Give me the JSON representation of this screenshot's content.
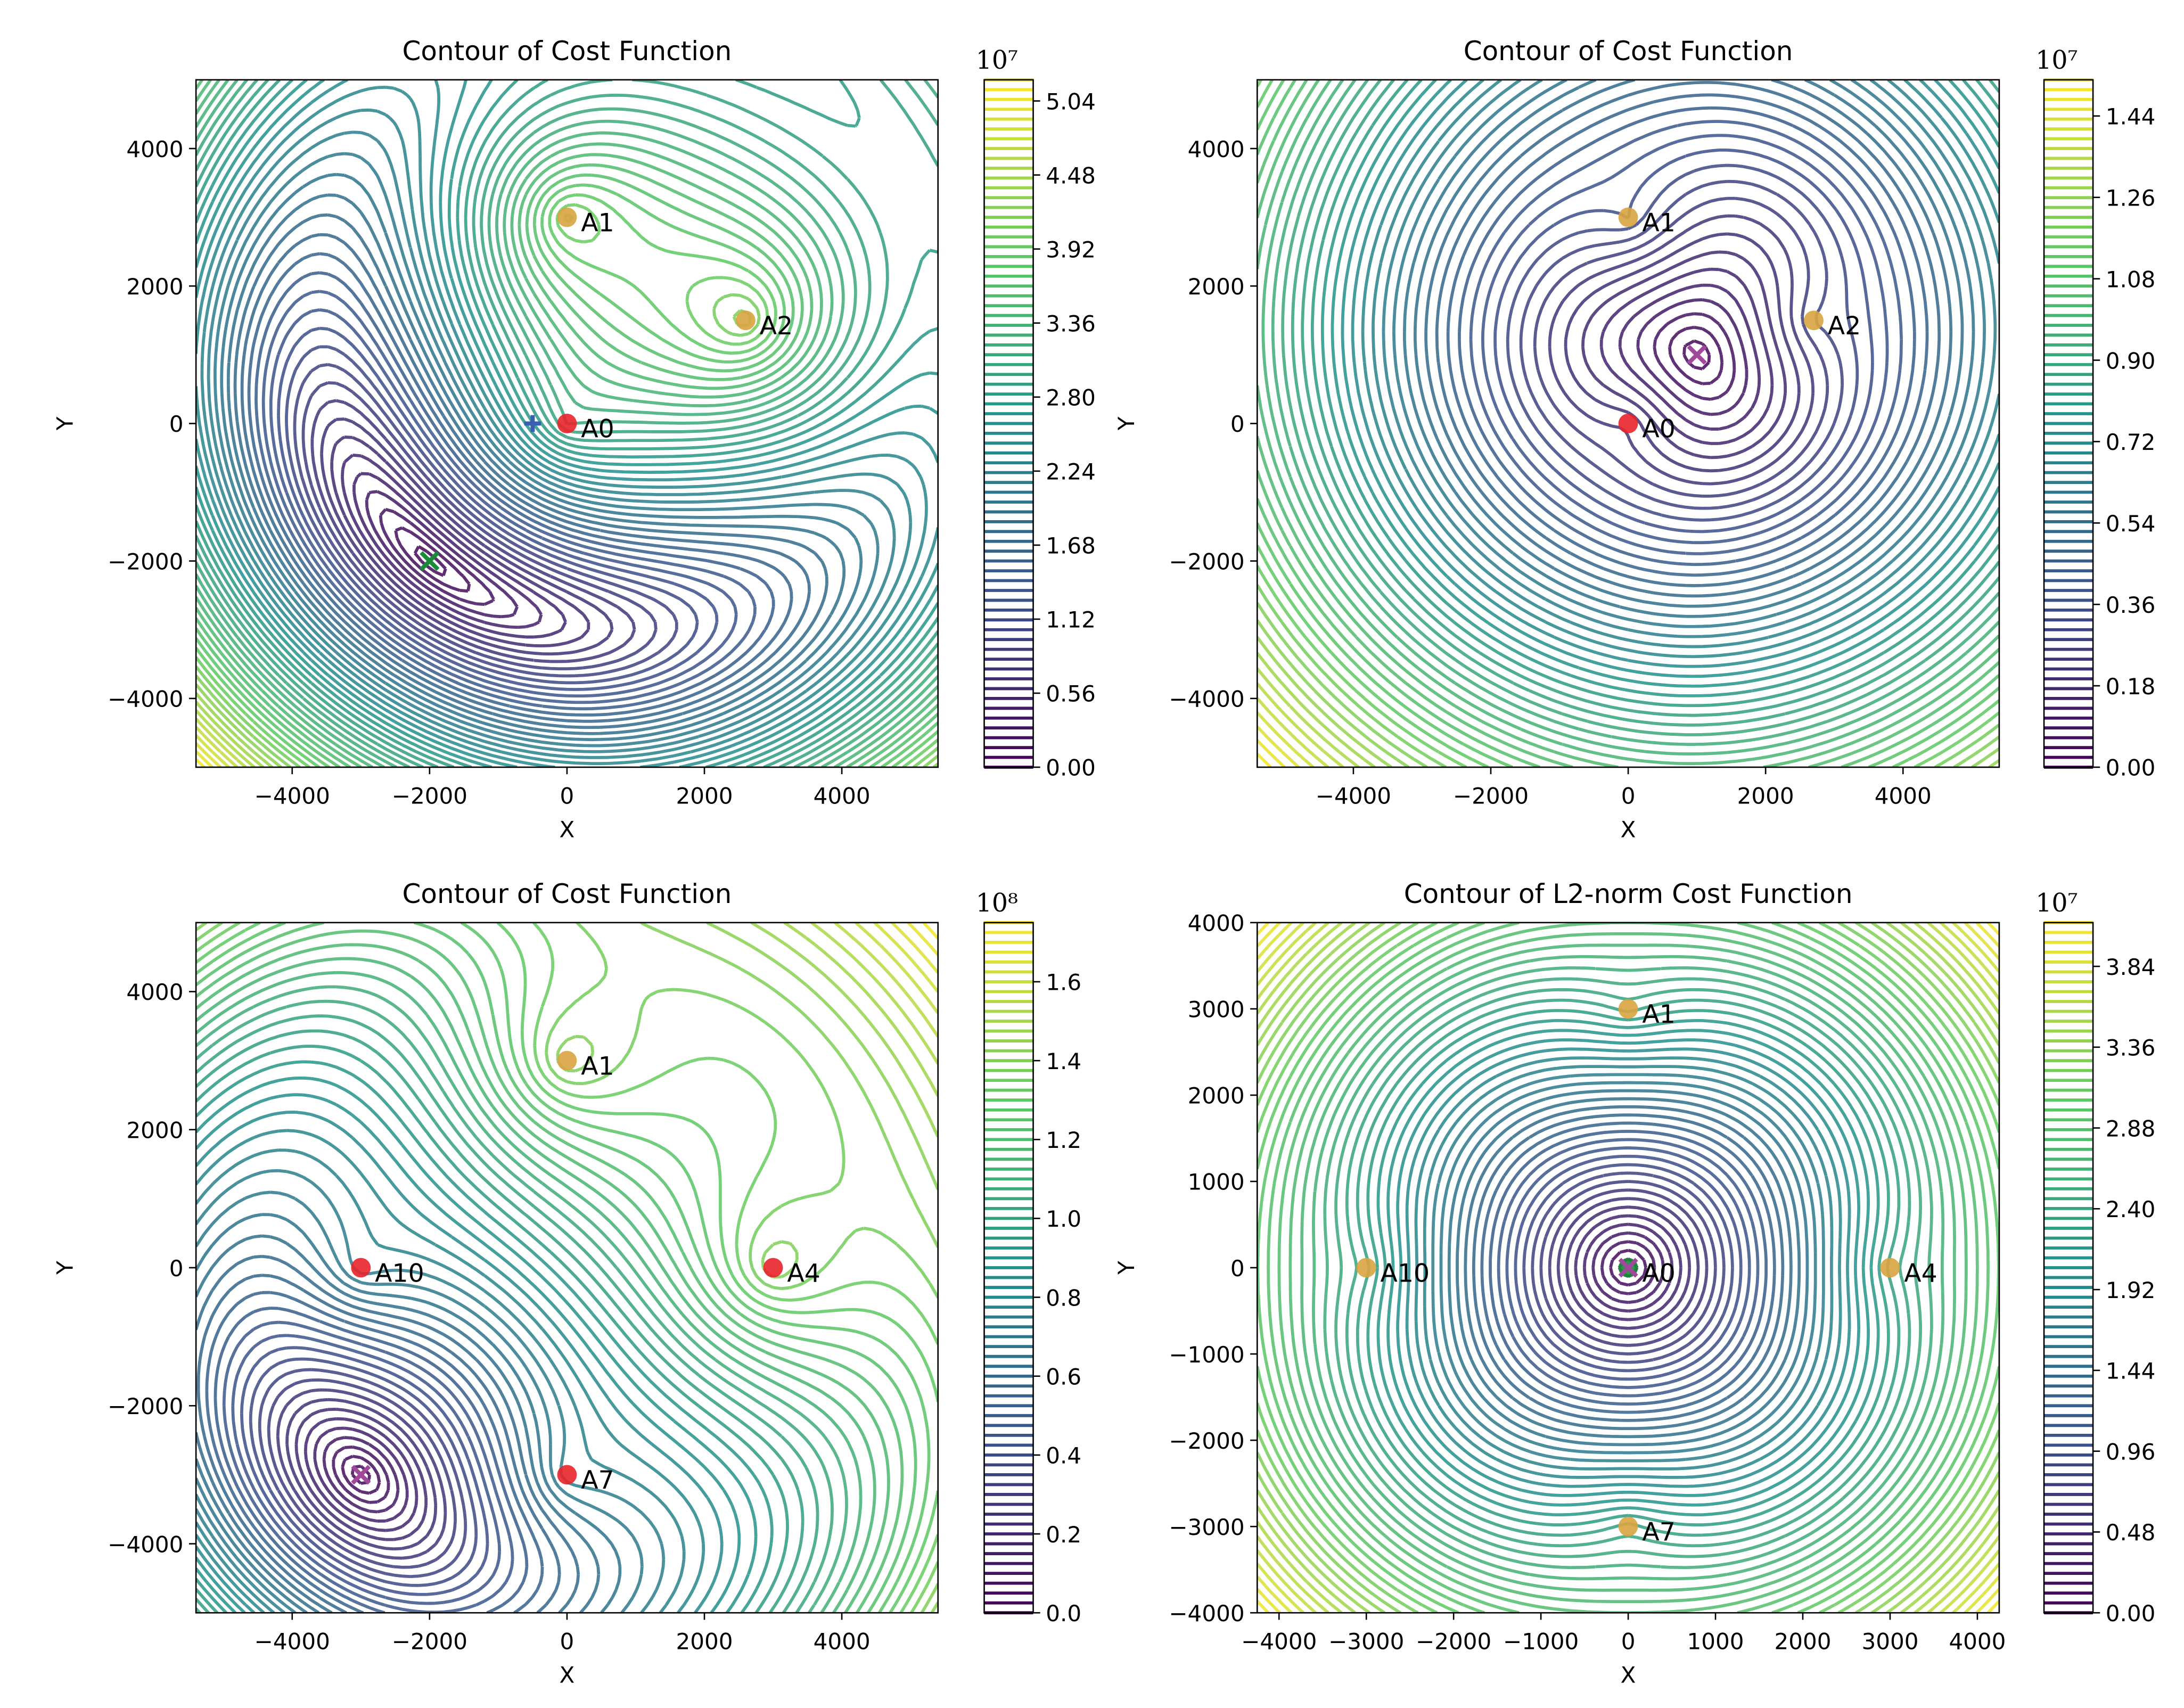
{
  "chart_data": [
    {
      "type": "contour",
      "title": "Contour of Cost Function",
      "xlabel": "X",
      "ylabel": "Y",
      "xlim": [
        -5400,
        5400
      ],
      "ylim": [
        -5000,
        5000
      ],
      "xticks": [
        {
          "value": -4000,
          "label": "−4000"
        },
        {
          "value": -2000,
          "label": "−2000"
        },
        0,
        2000,
        4000
      ],
      "yticks": [
        {
          "value": -4000,
          "label": "−4000"
        },
        {
          "value": -2000,
          "label": "−2000"
        },
        0,
        2000,
        4000
      ],
      "colorbar_offset": "10⁷",
      "clim": [
        0,
        5.2
      ],
      "cticks": [
        {
          "value": 0,
          "label": "0.00"
        },
        0.56,
        1.12,
        1.68,
        2.24,
        {
          "value": 2.8,
          "label": "2.80"
        },
        3.36,
        3.92,
        4.48,
        5.04
      ],
      "colormap": [
        "#440154",
        "#3b528b",
        "#21918c",
        "#5ec962",
        "#fde725"
      ],
      "anchors": [
        {
          "label": "A0",
          "x": 0,
          "y": 0,
          "color": "#e8242a"
        },
        {
          "label": "A1",
          "x": 0,
          "y": 3000,
          "color": "#d9a441"
        },
        {
          "label": "A2",
          "x": 2600,
          "y": 1500,
          "color": "#d9a441"
        }
      ],
      "markers": [
        {
          "x": -500,
          "y": 0,
          "symbol": "plus",
          "color": "#3a5fb0"
        },
        {
          "x": -2000,
          "y": -2000,
          "symbol": "x",
          "color": "#1a8a3a"
        }
      ]
    },
    {
      "type": "contour",
      "title": "Contour of Cost Function",
      "xlabel": "X",
      "ylabel": "Y",
      "xlim": [
        -5400,
        5400
      ],
      "ylim": [
        -5000,
        5000
      ],
      "xticks": [
        {
          "value": -4000,
          "label": "−4000"
        },
        {
          "value": -2000,
          "label": "−2000"
        },
        0,
        2000,
        4000
      ],
      "yticks": [
        {
          "value": -4000,
          "label": "−4000"
        },
        {
          "value": -2000,
          "label": "−2000"
        },
        0,
        2000,
        4000
      ],
      "colorbar_offset": "10⁷",
      "clim": [
        0,
        1.52
      ],
      "cticks": [
        {
          "value": 0,
          "label": "0.00"
        },
        0.18,
        0.36,
        0.54,
        0.72,
        {
          "value": 0.9,
          "label": "0.90"
        },
        1.08,
        1.26,
        1.44
      ],
      "colormap": [
        "#440154",
        "#3b528b",
        "#21918c",
        "#5ec962",
        "#fde725"
      ],
      "anchors": [
        {
          "label": "A0",
          "x": 0,
          "y": 0,
          "color": "#e8242a"
        },
        {
          "label": "A1",
          "x": 0,
          "y": 3000,
          "color": "#d9a441"
        },
        {
          "label": "A2",
          "x": 2700,
          "y": 1500,
          "color": "#d9a441"
        }
      ],
      "markers": [
        {
          "x": 1000,
          "y": 1000,
          "symbol": "x",
          "color": "#a0489a"
        }
      ]
    },
    {
      "type": "contour",
      "title": "Contour of Cost Function",
      "xlabel": "X",
      "ylabel": "Y",
      "xlim": [
        -5400,
        5400
      ],
      "ylim": [
        -5000,
        5000
      ],
      "xticks": [
        {
          "value": -4000,
          "label": "−4000"
        },
        {
          "value": -2000,
          "label": "−2000"
        },
        0,
        2000,
        4000
      ],
      "yticks": [
        {
          "value": -4000,
          "label": "−4000"
        },
        {
          "value": -2000,
          "label": "−2000"
        },
        0,
        2000,
        4000
      ],
      "colorbar_offset": "10⁸",
      "clim": [
        0,
        1.75
      ],
      "cticks": [
        {
          "value": 0,
          "label": "0.0"
        },
        0.2,
        0.4,
        0.6,
        0.8,
        {
          "value": 1,
          "label": "1.0"
        },
        1.2,
        1.4,
        1.6
      ],
      "colormap": [
        "#440154",
        "#3b528b",
        "#21918c",
        "#5ec962",
        "#fde725"
      ],
      "anchors": [
        {
          "label": "A1",
          "x": 0,
          "y": 3000,
          "color": "#d9a441"
        },
        {
          "label": "A4",
          "x": 3000,
          "y": 0,
          "color": "#e8242a"
        },
        {
          "label": "A7",
          "x": 0,
          "y": -3000,
          "color": "#e8242a"
        },
        {
          "label": "A10",
          "x": -3000,
          "y": 0,
          "color": "#e8242a"
        }
      ],
      "markers": [
        {
          "x": -3000,
          "y": -3000,
          "symbol": "x",
          "color": "#a0489a"
        }
      ]
    },
    {
      "type": "contour",
      "title": "Contour of L2-norm Cost Function",
      "xlabel": "X",
      "ylabel": "Y",
      "xlim": [
        -4250,
        4250
      ],
      "ylim": [
        -4000,
        4000
      ],
      "xticks": [
        {
          "value": -4000,
          "label": "−4000"
        },
        {
          "value": -3000,
          "label": "−3000"
        },
        {
          "value": -2000,
          "label": "−2000"
        },
        {
          "value": -1000,
          "label": "−1000"
        },
        0,
        1000,
        2000,
        3000,
        4000
      ],
      "yticks": [
        {
          "value": -4000,
          "label": "−4000"
        },
        {
          "value": -3000,
          "label": "−3000"
        },
        {
          "value": -2000,
          "label": "−2000"
        },
        {
          "value": -1000,
          "label": "−1000"
        },
        0,
        1000,
        2000,
        3000,
        4000
      ],
      "colorbar_offset": "10⁷",
      "clim": [
        0,
        4.1
      ],
      "cticks": [
        {
          "value": 0,
          "label": "0.00"
        },
        0.48,
        0.96,
        1.44,
        1.92,
        {
          "value": 2.4,
          "label": "2.40"
        },
        2.88,
        3.36,
        3.84
      ],
      "colormap": [
        "#440154",
        "#3b528b",
        "#21918c",
        "#5ec962",
        "#fde725"
      ],
      "anchors": [
        {
          "label": "A0",
          "x": 0,
          "y": 0,
          "color": "#1a8a3a"
        },
        {
          "label": "A1",
          "x": 0,
          "y": 3000,
          "color": "#d9a441"
        },
        {
          "label": "A4",
          "x": 3000,
          "y": 0,
          "color": "#d9a441"
        },
        {
          "label": "A7",
          "x": 0,
          "y": -3000,
          "color": "#d9a441"
        },
        {
          "label": "A10",
          "x": -3000,
          "y": 0,
          "color": "#d9a441"
        }
      ],
      "markers": [
        {
          "x": 0,
          "y": 0,
          "symbol": "x",
          "color": "#a0489a"
        }
      ]
    }
  ]
}
